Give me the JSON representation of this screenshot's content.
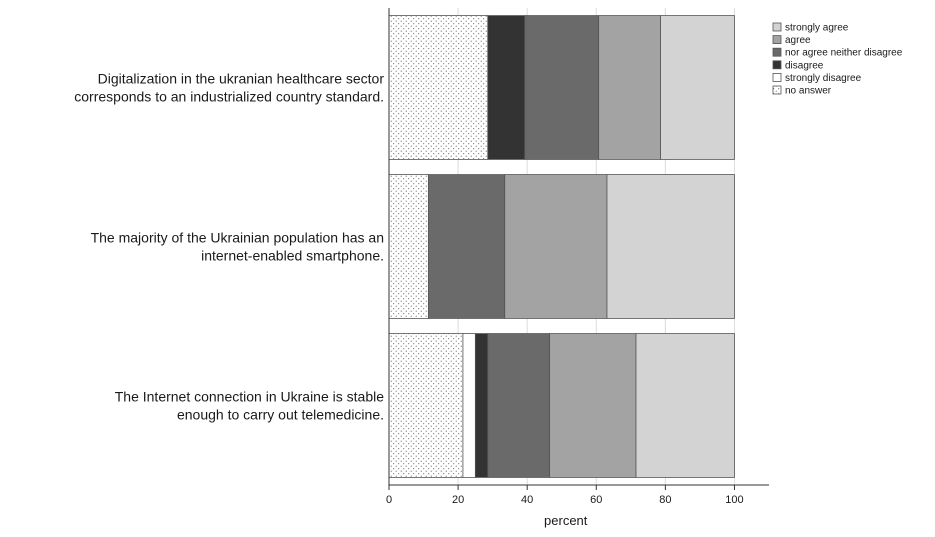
{
  "chart_data": {
    "type": "bar",
    "orientation": "horizontal",
    "stacked": true,
    "categories": [
      "Digitalization in the ukranian healthcare sector corresponds to an industrialized country standard.",
      "The majority of the Ukrainian population has an internet-enabled smartphone.",
      "The Internet connection in Ukraine is stable enough to carry out telemedicine."
    ],
    "category_lines": [
      [
        "Digitalization in the ukranian healthcare sector",
        "corresponds to an industrialized country standard."
      ],
      [
        "The majority of the Ukrainian population has an",
        "internet-enabled smartphone."
      ],
      [
        "The Internet connection in Ukraine is stable",
        "enough to carry out telemedicine."
      ]
    ],
    "series": [
      {
        "name": "no answer",
        "values": [
          28.6,
          11.4,
          21.4
        ]
      },
      {
        "name": "strongly disagree",
        "values": [
          0,
          0,
          3.6
        ]
      },
      {
        "name": "disagree",
        "values": [
          10.7,
          0,
          3.6
        ]
      },
      {
        "name": "nor agree neither disagree",
        "values": [
          21.4,
          22.1,
          17.9
        ]
      },
      {
        "name": "agree",
        "values": [
          17.9,
          29.6,
          25.0
        ]
      },
      {
        "name": "strongly agree",
        "values": [
          21.4,
          36.9,
          28.5
        ]
      }
    ],
    "legend_order": [
      "strongly agree",
      "agree",
      "nor agree neither disagree",
      "disagree",
      "strongly disagree",
      "no answer"
    ],
    "colors": {
      "strongly agree": "#d3d3d3",
      "agree": "#a3a3a3",
      "nor agree neither disagree": "#6a6a6a",
      "disagree": "#333333",
      "strongly disagree": "#ffffff",
      "no answer": "dots"
    },
    "xlabel": "percent",
    "xlim": [
      0,
      110
    ],
    "xticks": [
      0,
      20,
      40,
      60,
      80,
      100
    ],
    "grid": "vertical",
    "legend_position": "top-right"
  }
}
